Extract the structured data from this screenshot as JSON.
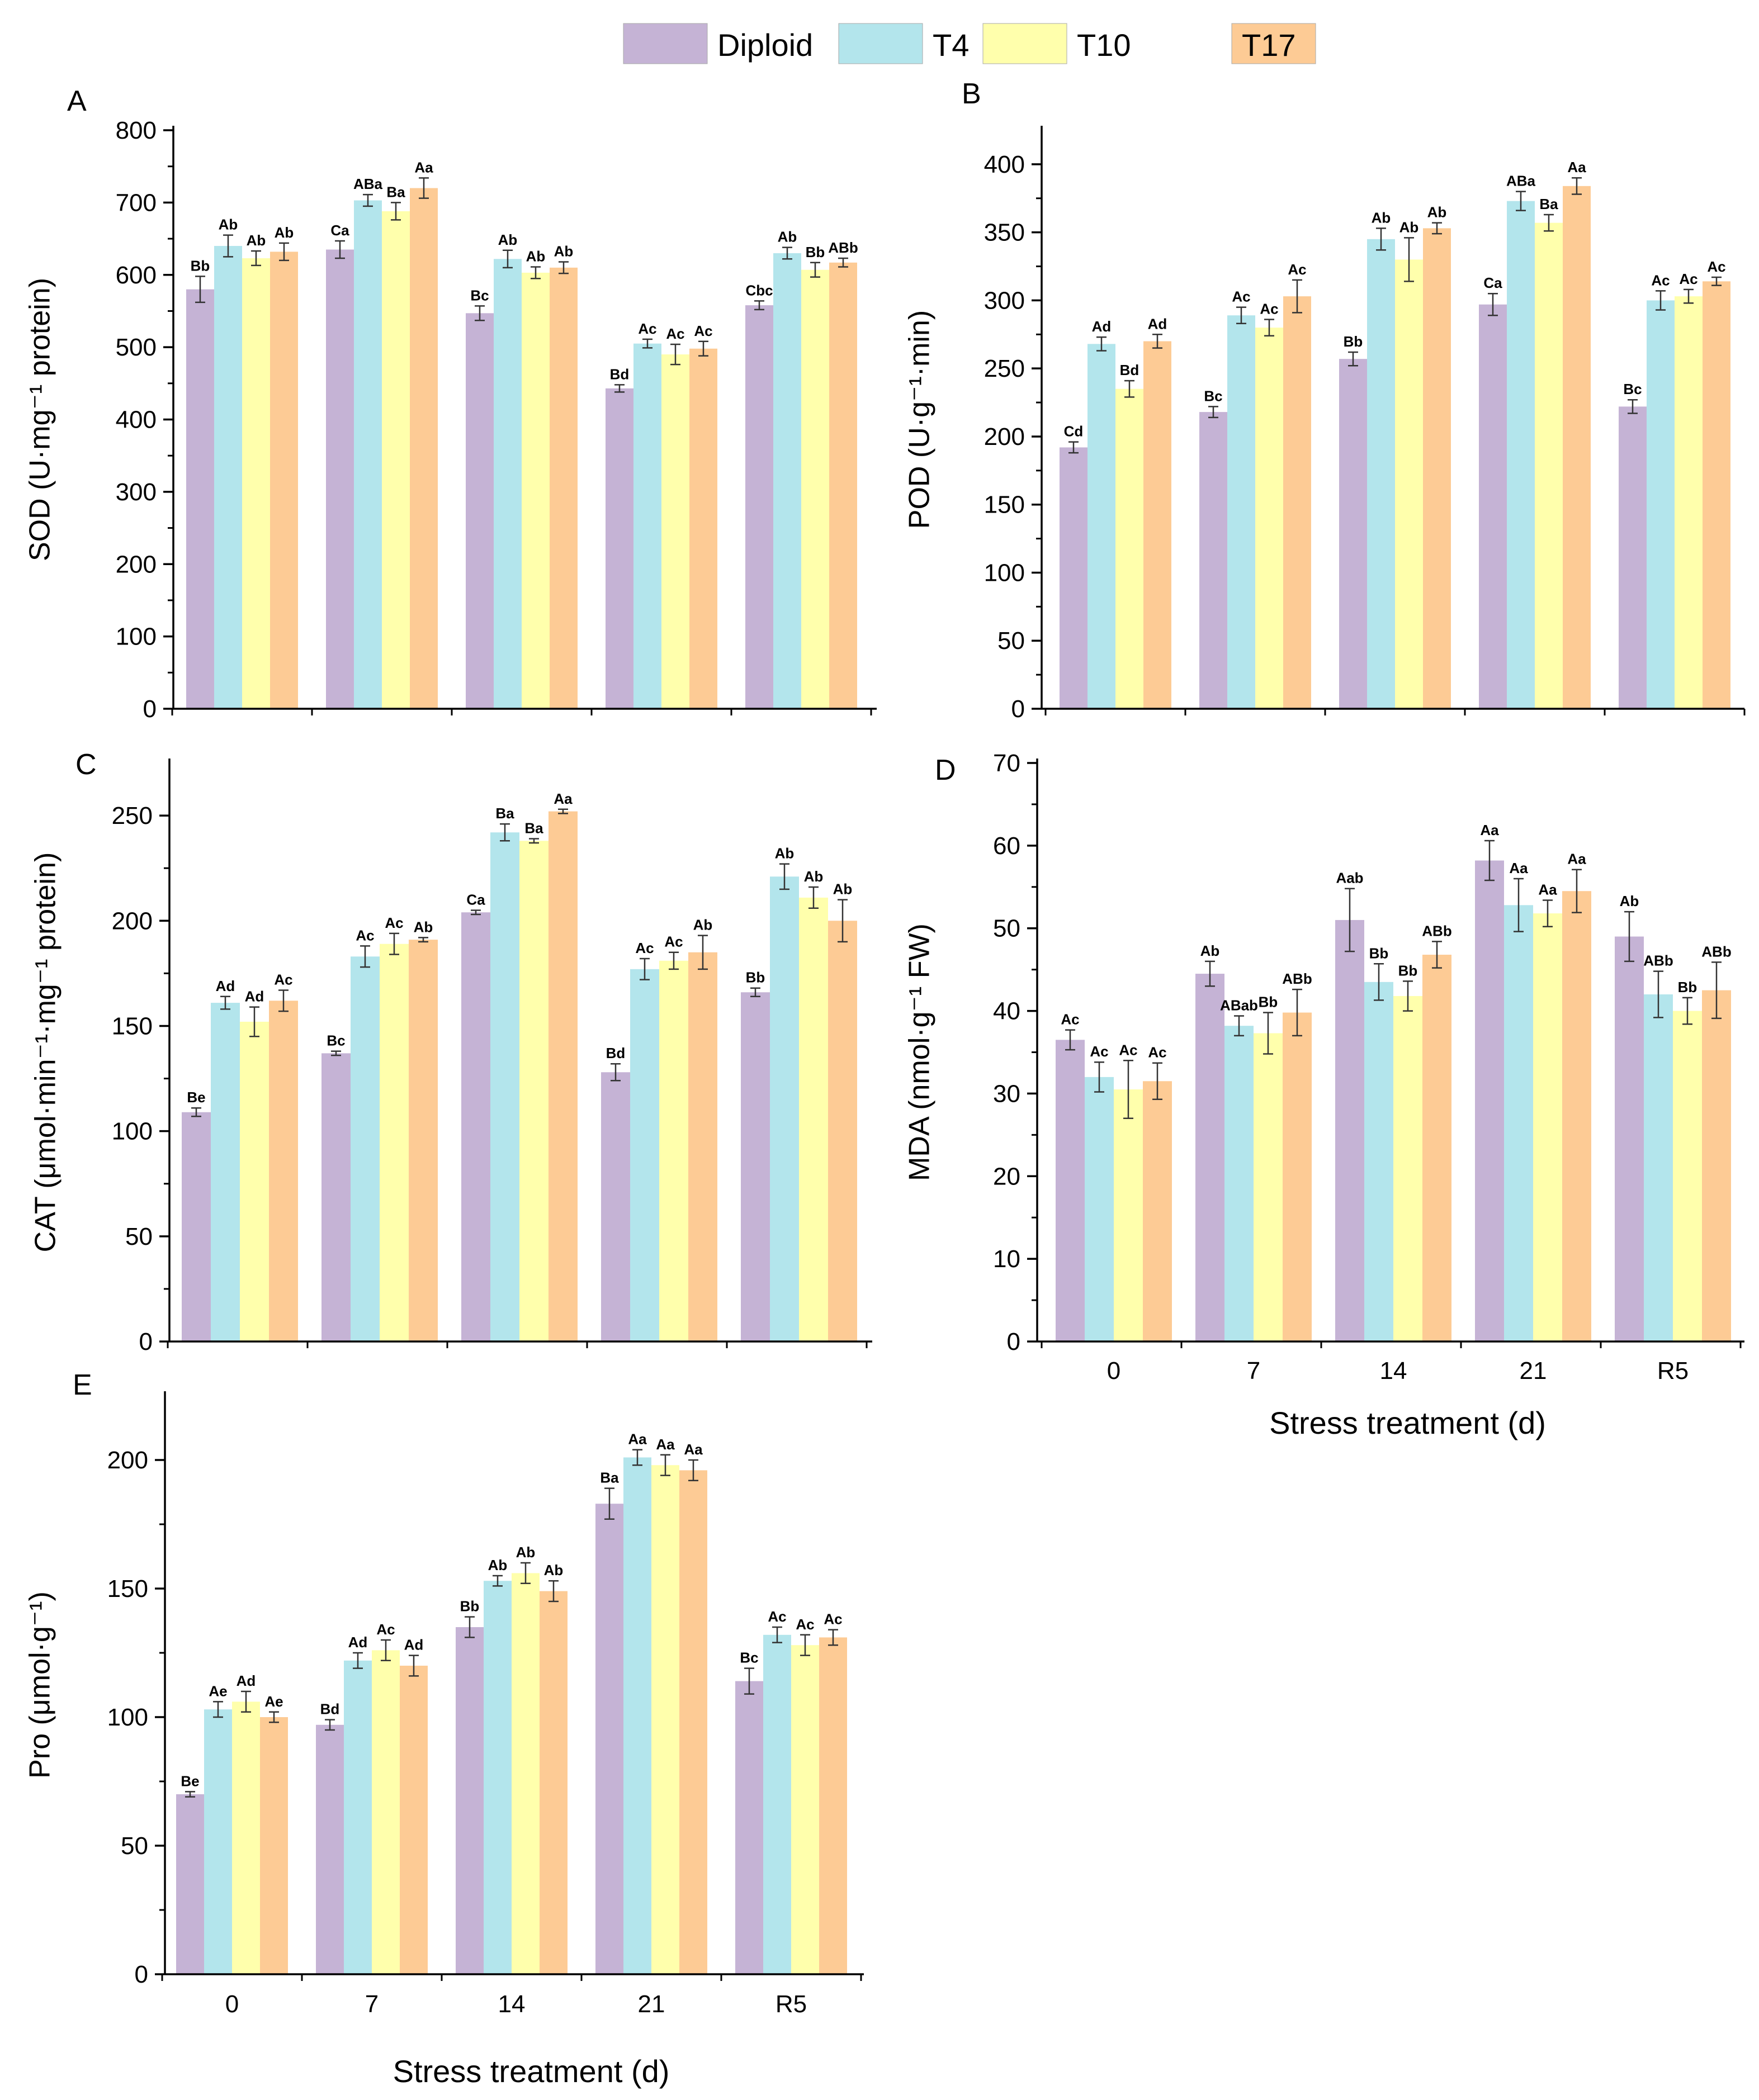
{
  "legend": {
    "entries": [
      "Diploid",
      "T4",
      "T10",
      "T17"
    ],
    "colors": [
      "#c5b3d5",
      "#b3e5ec",
      "#ffffac",
      "#fdcb95"
    ]
  },
  "chart_data": [
    {
      "type": "bar",
      "panel": "A",
      "ylabel": "SOD (U·mg⁻¹ protein)",
      "xlabel": "",
      "categories": [
        "0",
        "7",
        "14",
        "21",
        "R5"
      ],
      "ylim": [
        0,
        800
      ],
      "yticks": [
        0,
        100,
        200,
        300,
        400,
        500,
        600,
        700,
        800
      ],
      "series": [
        {
          "name": "Diploid",
          "values": [
            580,
            635,
            547,
            443,
            558
          ],
          "errors": [
            18,
            12,
            10,
            5,
            6
          ],
          "labels": [
            "Bb",
            "Ca",
            "Bc",
            "Bd",
            "Cbc"
          ]
        },
        {
          "name": "T4",
          "values": [
            640,
            703,
            622,
            505,
            630
          ],
          "errors": [
            15,
            8,
            12,
            6,
            8
          ],
          "labels": [
            "Ab",
            "ABa",
            "Ab",
            "Ac",
            "Ab"
          ]
        },
        {
          "name": "T10",
          "values": [
            623,
            688,
            603,
            490,
            607
          ],
          "errors": [
            10,
            12,
            8,
            14,
            10
          ],
          "labels": [
            "Ab",
            "Ba",
            "Ab",
            "Ac",
            "Bb"
          ]
        },
        {
          "name": "T17",
          "values": [
            632,
            720,
            610,
            498,
            617
          ],
          "errors": [
            12,
            14,
            8,
            10,
            6
          ],
          "labels": [
            "Ab",
            "Aa",
            "Ab",
            "Ac",
            "ABb"
          ]
        }
      ]
    },
    {
      "type": "bar",
      "panel": "B",
      "ylabel": "POD (U·g⁻¹·min)",
      "xlabel": "",
      "categories": [
        "0",
        "7",
        "14",
        "21",
        "R5"
      ],
      "ylim": [
        0,
        425
      ],
      "yticks": [
        0,
        50,
        100,
        150,
        200,
        250,
        300,
        350,
        400
      ],
      "series": [
        {
          "name": "Diploid",
          "values": [
            192,
            218,
            257,
            297,
            222
          ],
          "errors": [
            4,
            4,
            5,
            8,
            5
          ],
          "labels": [
            "Cd",
            "Bc",
            "Bb",
            "Ca",
            "Bc"
          ]
        },
        {
          "name": "T4",
          "values": [
            268,
            289,
            345,
            373,
            300
          ],
          "errors": [
            5,
            6,
            8,
            7,
            7
          ],
          "labels": [
            "Ad",
            "Ac",
            "Ab",
            "ABa",
            "Ac"
          ]
        },
        {
          "name": "T10",
          "values": [
            235,
            280,
            330,
            357,
            303
          ],
          "errors": [
            6,
            6,
            16,
            6,
            5
          ],
          "labels": [
            "Bd",
            "Ac",
            "Ab",
            "Ba",
            "Ac"
          ]
        },
        {
          "name": "T17",
          "values": [
            270,
            303,
            353,
            384,
            314
          ],
          "errors": [
            5,
            12,
            4,
            6,
            3
          ],
          "labels": [
            "Ad",
            "Ac",
            "Ab",
            "Aa",
            "Ac"
          ]
        }
      ]
    },
    {
      "type": "bar",
      "panel": "C",
      "ylabel": "CAT (μmol·min⁻¹·mg⁻¹ protein)",
      "xlabel": "",
      "categories": [
        "0",
        "7",
        "14",
        "21",
        "R5"
      ],
      "ylim": [
        0,
        275
      ],
      "yticks": [
        0,
        50,
        100,
        150,
        200,
        250
      ],
      "series": [
        {
          "name": "Diploid",
          "values": [
            109,
            137,
            204,
            128,
            166
          ],
          "errors": [
            2,
            1,
            1,
            4,
            2
          ],
          "labels": [
            "Be",
            "Bc",
            "Ca",
            "Bd",
            "Bb"
          ]
        },
        {
          "name": "T4",
          "values": [
            161,
            183,
            242,
            177,
            221
          ],
          "errors": [
            3,
            5,
            4,
            5,
            6
          ],
          "labels": [
            "Ad",
            "Ac",
            "Ba",
            "Ac",
            "Ab"
          ]
        },
        {
          "name": "T10",
          "values": [
            152,
            189,
            238,
            181,
            211
          ],
          "errors": [
            7,
            5,
            1,
            4,
            5
          ],
          "labels": [
            "Ad",
            "Ac",
            "Ba",
            "Ac",
            "Ab"
          ]
        },
        {
          "name": "T17",
          "values": [
            162,
            191,
            252,
            185,
            200
          ],
          "errors": [
            5,
            1,
            1,
            8,
            10
          ],
          "labels": [
            "Ac",
            "Ab",
            "Aa",
            "Ab",
            "Ab"
          ]
        }
      ]
    },
    {
      "type": "bar",
      "panel": "D",
      "ylabel": "MDA (nmol·g⁻¹ FW)",
      "xlabel": "Stress treatment (d)",
      "categories": [
        "0",
        "7",
        "14",
        "21",
        "R5"
      ],
      "ylim": [
        0,
        70
      ],
      "yticks": [
        0,
        10,
        20,
        30,
        40,
        50,
        60,
        70
      ],
      "series": [
        {
          "name": "Diploid",
          "values": [
            36.5,
            44.5,
            51,
            58.2,
            49
          ],
          "errors": [
            1.2,
            1.5,
            3.8,
            2.4,
            3
          ],
          "labels": [
            "Ac",
            "Ab",
            "Aab",
            "Aa",
            "Ab"
          ]
        },
        {
          "name": "T4",
          "values": [
            32,
            38.2,
            43.5,
            52.8,
            42
          ],
          "errors": [
            1.8,
            1.2,
            2.2,
            3.2,
            2.8
          ],
          "labels": [
            "Ac",
            "ABab",
            "Bb",
            "Aa",
            "ABb"
          ]
        },
        {
          "name": "T10",
          "values": [
            30.5,
            37.3,
            41.8,
            51.8,
            40
          ],
          "errors": [
            3.5,
            2.5,
            1.8,
            1.6,
            1.6
          ],
          "labels": [
            "Ac",
            "Bb",
            "Bb",
            "Aa",
            "Bb"
          ]
        },
        {
          "name": "T17",
          "values": [
            31.5,
            39.8,
            46.8,
            54.5,
            42.5
          ],
          "errors": [
            2.2,
            2.8,
            1.6,
            2.6,
            3.4
          ],
          "labels": [
            "Ac",
            "ABb",
            "ABb",
            "Aa",
            "ABb"
          ]
        }
      ]
    },
    {
      "type": "bar",
      "panel": "E",
      "ylabel": "Pro (μmol·g⁻¹)",
      "xlabel": "Stress treatment (d)",
      "categories": [
        "0",
        "7",
        "14",
        "21",
        "R5"
      ],
      "ylim": [
        0,
        225
      ],
      "yticks": [
        0,
        50,
        100,
        150,
        200
      ],
      "series": [
        {
          "name": "Diploid",
          "values": [
            70,
            97,
            135,
            183,
            114
          ],
          "errors": [
            1,
            2,
            4,
            6,
            5
          ],
          "labels": [
            "Be",
            "Bd",
            "Bb",
            "Ba",
            "Bc"
          ]
        },
        {
          "name": "T4",
          "values": [
            103,
            122,
            153,
            201,
            132
          ],
          "errors": [
            3,
            3,
            2,
            3,
            3
          ],
          "labels": [
            "Ae",
            "Ad",
            "Ab",
            "Aa",
            "Ac"
          ]
        },
        {
          "name": "T10",
          "values": [
            106,
            126,
            156,
            198,
            128
          ],
          "errors": [
            4,
            4,
            4,
            4,
            4
          ],
          "labels": [
            "Ad",
            "Ac",
            "Ab",
            "Aa",
            "Ac"
          ]
        },
        {
          "name": "T17",
          "values": [
            100,
            120,
            149,
            196,
            131
          ],
          "errors": [
            2,
            4,
            4,
            4,
            3
          ],
          "labels": [
            "Ae",
            "Ad",
            "Ab",
            "Aa",
            "Ac"
          ]
        }
      ]
    }
  ]
}
